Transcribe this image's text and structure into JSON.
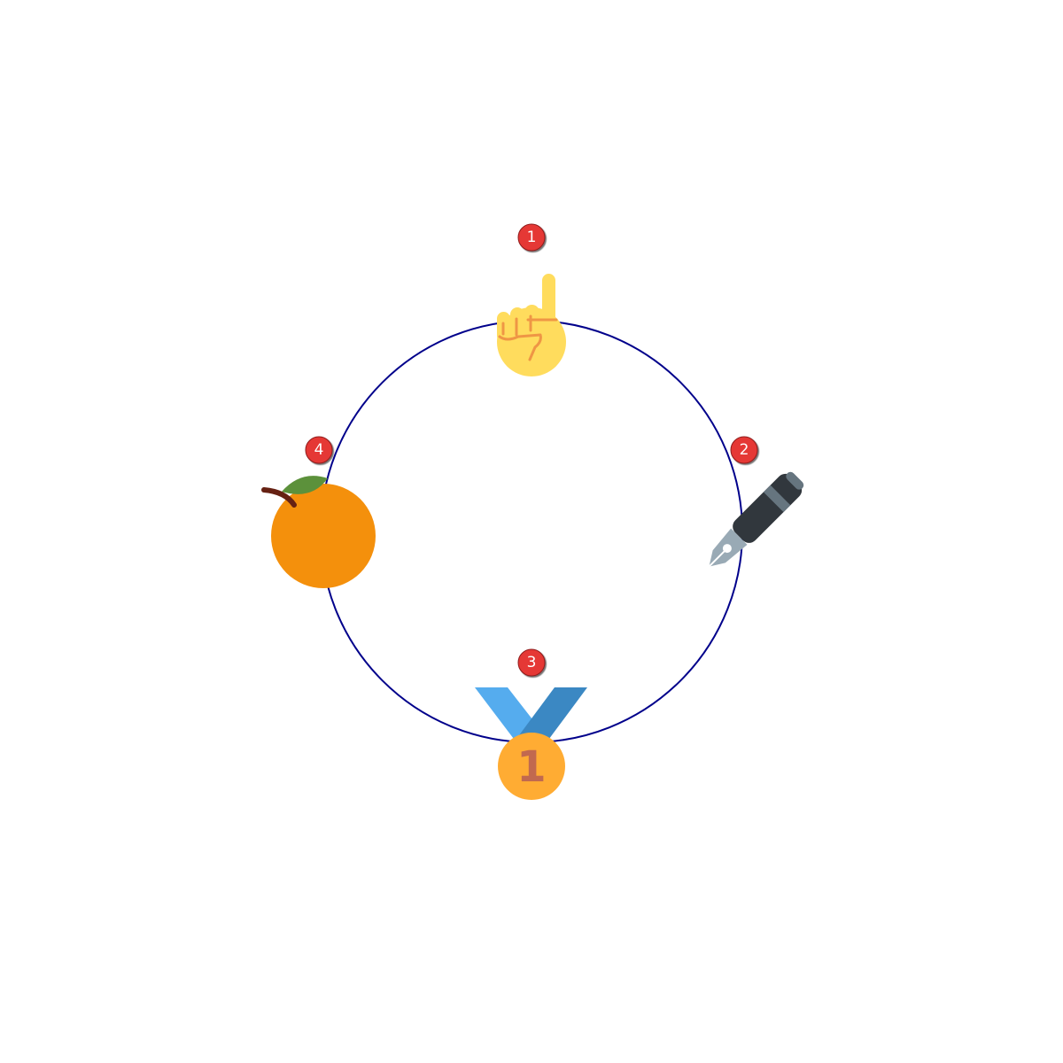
{
  "diagram": {
    "ring_color": "#00008B",
    "badge_color": "#E53935",
    "items": [
      {
        "number": "1",
        "icon": "index-pointing-up-icon"
      },
      {
        "number": "2",
        "icon": "fountain-pen-icon"
      },
      {
        "number": "3",
        "icon": "first-place-medal-icon"
      },
      {
        "number": "4",
        "icon": "tangerine-icon"
      }
    ],
    "medal_numeral": "1"
  }
}
